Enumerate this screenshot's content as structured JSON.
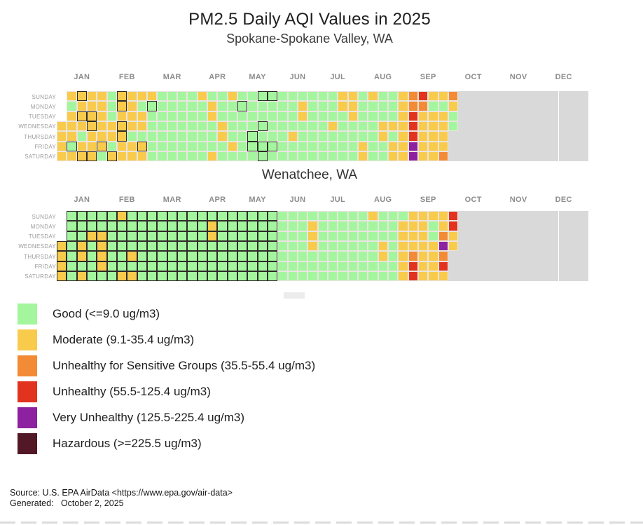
{
  "title": "PM2.5 Daily AQI Values in 2025",
  "weekdays": [
    "SUNDAY",
    "MONDAY",
    "TUESDAY",
    "WEDNESDAY",
    "THURSDAY",
    "FRIDAY",
    "SATURDAY"
  ],
  "months": [
    {
      "label": "JAN",
      "from": 0,
      "to": 4
    },
    {
      "label": "FEB",
      "from": 5,
      "to": 8
    },
    {
      "label": "MAR",
      "from": 9,
      "to": 13
    },
    {
      "label": "APR",
      "from": 14,
      "to": 17
    },
    {
      "label": "MAY",
      "from": 18,
      "to": 21
    },
    {
      "label": "JUN",
      "from": 22,
      "to": 25
    },
    {
      "label": "JUL",
      "from": 26,
      "to": 29
    },
    {
      "label": "AUG",
      "from": 30,
      "to": 34
    },
    {
      "label": "SEP",
      "from": 35,
      "to": 38
    },
    {
      "label": "OCT",
      "from": 39,
      "to": 43
    },
    {
      "label": "NOV",
      "from": 44,
      "to": 47
    },
    {
      "label": "DEC",
      "from": 48,
      "to": 52
    }
  ],
  "colors": {
    "G": "#A4F69E",
    "M": "#F8CB4C",
    "U": "#F28A36",
    "R": "#E2331F",
    "V": "#8E21A0",
    "H": "#521825",
    "X": "#D9D9D9"
  },
  "chart_data": [
    {
      "type": "heatmap",
      "subtitle": "Spokane-Spokane Valley, WA",
      "legend_key": "G=Good M=Moderate U=UnhealthySensitive R=Unhealthy V=VeryUnhealthy X=NoData .=empty",
      "weeks": 53,
      "grid": [
        ".MMMMGMMMMGGGGMGGMGGGGGGGGGGMMGMGGMURMMUXXXXXXXXXXXXX",
        ".GMMMGMMGGGGGGGMGGGGGGGGMGGGMMGGGGMUUGGMXXXXXXXXXXXXX",
        ".MMMMGMMMGGGGGGMGGGGGGGGMGGGGMGGGGMRMMMGXXXXXXXXXXXXX",
        "MMMMMMMMMGGGGGGGMGGGGGGGGGGMGGGGMMMRMMMGXXXXXXXXXXXXX",
        "MMGMMMMGGGGGGGGGMGGGGGGMGGGGGGGGMGMRMMMXXXXXXXXXXXXXX",
        "MGMMMGMMMGGGGGGGGMGGGGGGGGGGGGMGGMMVMMMXXXXXXXXXXXXXX",
        "MMMMGMMMMGGGGGGMGGGGGGGGGGGGGGMGGMMVMMUXXXXXXXXXXXXXX"
      ],
      "outlined_cells": {
        "0": [
          2,
          6,
          20,
          21
        ],
        "1": [
          6,
          9,
          18
        ],
        "2": [
          2,
          3
        ],
        "3": [
          3,
          6,
          20
        ],
        "4": [
          6,
          19
        ],
        "5": [
          1,
          4,
          8,
          19,
          20,
          21
        ],
        "6": [
          2,
          3,
          5,
          20
        ]
      },
      "outline_all_through_week": -1
    },
    {
      "type": "heatmap",
      "subtitle": "Wenatchee, WA",
      "legend_key": "G=Good M=Moderate U=UnhealthySensitive R=Unhealthy V=VeryUnhealthy X=NoData .=empty",
      "weeks": 53,
      "grid": [
        ".GGGGGMGGGGGGGGGGGGGGGGGGGGGGGGMGGGMMMMRXXXXXXXXXXXXX",
        ".GGGGGGGGGGGGGGMGGGGGGGGGMGGGGGGGGMMMGMRXXXXXXXXXXXXX",
        ".GGMMGGGGGGGGGGMGGGGGGGGGMGGGGGGGGMMMGUMXXXXXXXXXXXXX",
        "MGMGMGGGGGGGGGGGGGGGGGGGGMGGGGGGMGMMMMVMXXXXXXXXXXXXX",
        "MGMGMGGMGGGGGGGGGGGGGGGGGGGGGGGGMGMUMMUXXXXXXXXXXXXXX",
        "MGGGMGGGGGGGGGGGGGGGGGGGGGGGGGGGGGMRMMRXXXXXXXXXXXXXX",
        "MGMGGGMMGGGGGGGGGGGGGGGGGGGGGGGGGGMRMMMXXXXXXXXXXXXXX"
      ],
      "outlined_cells": {},
      "outline_all_through_week": 21
    }
  ],
  "legend": [
    {
      "label": "Good (<=9.0 ug/m3)",
      "color": "G"
    },
    {
      "label": "Moderate (9.1-35.4 ug/m3)",
      "color": "M"
    },
    {
      "label": "Unhealthy for Sensitive Groups (35.5-55.4 ug/m3)",
      "color": "U"
    },
    {
      "label": "Unhealthy (55.5-125.4 ug/m3)",
      "color": "R"
    },
    {
      "label": "Very Unhealthy (125.5-225.4 ug/m3)",
      "color": "V"
    },
    {
      "label": "Hazardous (>=225.5 ug/m3)",
      "color": "H"
    }
  ],
  "footer": {
    "source_line": "Source: U.S. EPA AirData <https://www.epa.gov/air-data>",
    "generated_line": "Generated:   October 2, 2025"
  }
}
